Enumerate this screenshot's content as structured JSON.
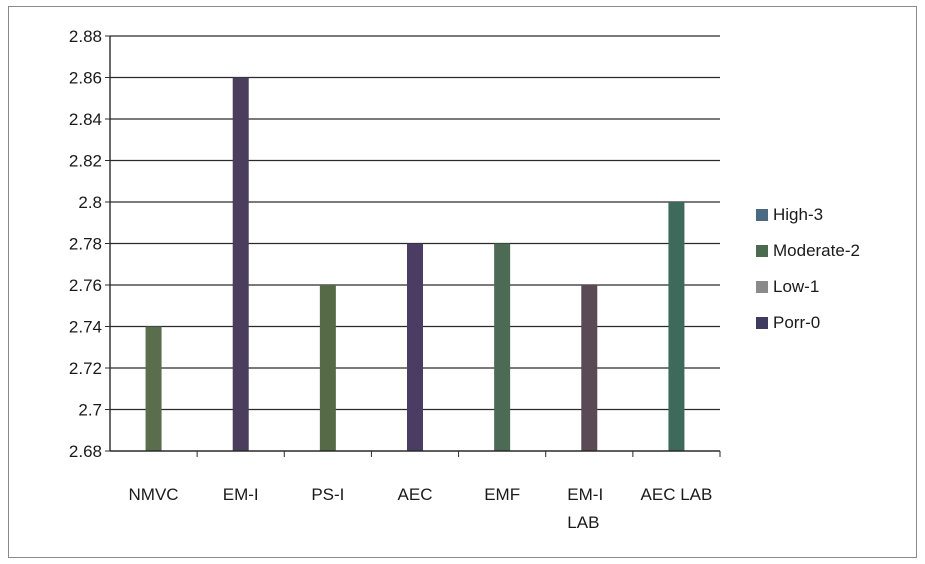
{
  "chart_data": {
    "type": "bar",
    "categories": [
      [
        "NMVC"
      ],
      [
        "EM-I"
      ],
      [
        "PS-I"
      ],
      [
        "AEC"
      ],
      [
        "EMF"
      ],
      [
        "EM-I",
        "LAB"
      ],
      [
        "AEC LAB"
      ]
    ],
    "series": [
      {
        "name": "High-3",
        "color": "#4a6a82"
      },
      {
        "name": "Moderate-2",
        "color": "#4a6b4e"
      },
      {
        "name": "Low-1",
        "color": "#8a8a8a"
      },
      {
        "name": "Porr-0",
        "color": "#3e3c5e"
      }
    ],
    "values": [
      2.74,
      2.86,
      2.76,
      2.78,
      2.78,
      2.76,
      2.8
    ],
    "bar_colors": [
      "#5a6e4e",
      "#4b3e5c",
      "#566a48",
      "#4a3c62",
      "#4c6a54",
      "#5a4a55",
      "#3e6a5c"
    ],
    "ylim": [
      2.68,
      2.88
    ],
    "yticks": [
      "2.68",
      "2.7",
      "2.72",
      "2.74",
      "2.76",
      "2.78",
      "2.8",
      "2.82",
      "2.84",
      "2.86",
      "2.88"
    ],
    "grid": true,
    "legend_position": "right",
    "title": "",
    "xlabel": "",
    "ylabel": ""
  }
}
